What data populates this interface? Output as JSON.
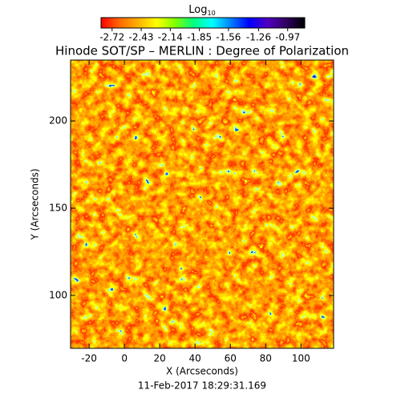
{
  "chart_data": {
    "type": "heatmap",
    "title": "Hinode SOT/SP – MERLIN : Degree of Polarization",
    "colorbar_label": "Log",
    "colorbar_label_subscript": "10",
    "colorbar_lim": [
      -2.83,
      -0.8
    ],
    "colorbar_ticks": [
      -2.72,
      -2.43,
      -2.14,
      -1.85,
      -1.56,
      -1.26,
      -0.97
    ],
    "colormap": [
      "#ff0000",
      "#ff6a00",
      "#ffb000",
      "#ffff00",
      "#7fff00",
      "#00ff80",
      "#00ffff",
      "#0080ff",
      "#0000ff",
      "#5000c0",
      "#300060",
      "#000000"
    ],
    "x_label": "X (Arcseconds)",
    "y_label": "Y (Arcseconds)",
    "xlim": [
      -30.5,
      118.5
    ],
    "ylim": [
      69.7,
      234.9
    ],
    "xticks": [
      -20,
      0,
      20,
      40,
      60,
      80,
      100
    ],
    "yticks": [
      100,
      150,
      200
    ],
    "date": "11-Feb-2017 18:29:31.169"
  }
}
